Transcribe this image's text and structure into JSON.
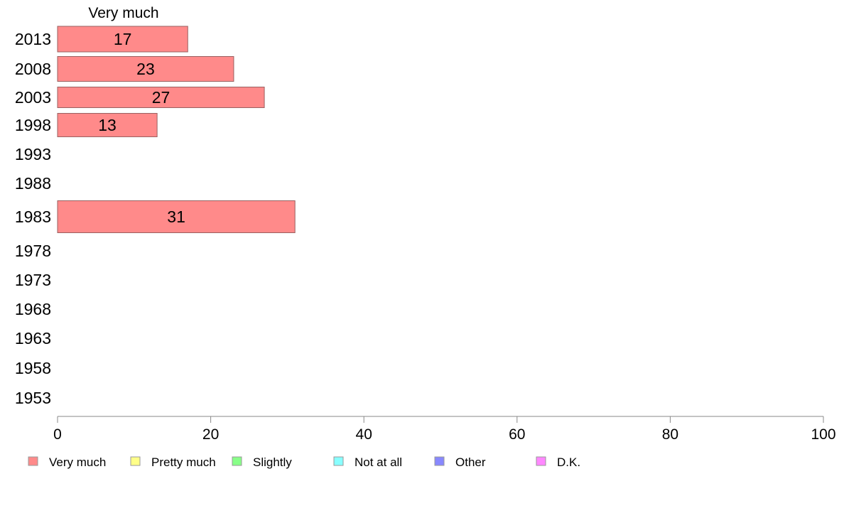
{
  "chart_data": {
    "type": "bar",
    "orientation": "horizontal",
    "stacked": true,
    "categories": [
      "2013",
      "2008",
      "2003",
      "1998",
      "1993",
      "1988",
      "1983",
      "1978",
      "1973",
      "1968",
      "1963",
      "1958",
      "1953"
    ],
    "series": [
      {
        "name": "Very much",
        "color": "#ff8a8a",
        "values": [
          17,
          23,
          27,
          13,
          null,
          null,
          31,
          null,
          null,
          null,
          null,
          null,
          null
        ]
      },
      {
        "name": "Pretty much",
        "color": "#ffff88",
        "values": [
          null,
          null,
          null,
          null,
          null,
          null,
          null,
          null,
          null,
          null,
          null,
          null,
          null
        ]
      },
      {
        "name": "Slightly",
        "color": "#88ff88",
        "values": [
          null,
          null,
          null,
          null,
          null,
          null,
          null,
          null,
          null,
          null,
          null,
          null,
          null
        ]
      },
      {
        "name": "Not at all",
        "color": "#88ffff",
        "values": [
          null,
          null,
          null,
          null,
          null,
          null,
          null,
          null,
          null,
          null,
          null,
          null,
          null
        ]
      },
      {
        "name": "Other",
        "color": "#8888ff",
        "values": [
          null,
          null,
          null,
          null,
          null,
          null,
          null,
          null,
          null,
          null,
          null,
          null,
          null
        ]
      },
      {
        "name": "D.K.",
        "color": "#ff88ff",
        "values": [
          null,
          null,
          null,
          null,
          null,
          null,
          null,
          null,
          null,
          null,
          null,
          null,
          null
        ]
      }
    ],
    "column_header": "Very much",
    "xlim": [
      0,
      100
    ],
    "xticks": [
      0,
      20,
      40,
      60,
      80,
      100
    ],
    "grid": false,
    "legend_position": "bottom"
  }
}
